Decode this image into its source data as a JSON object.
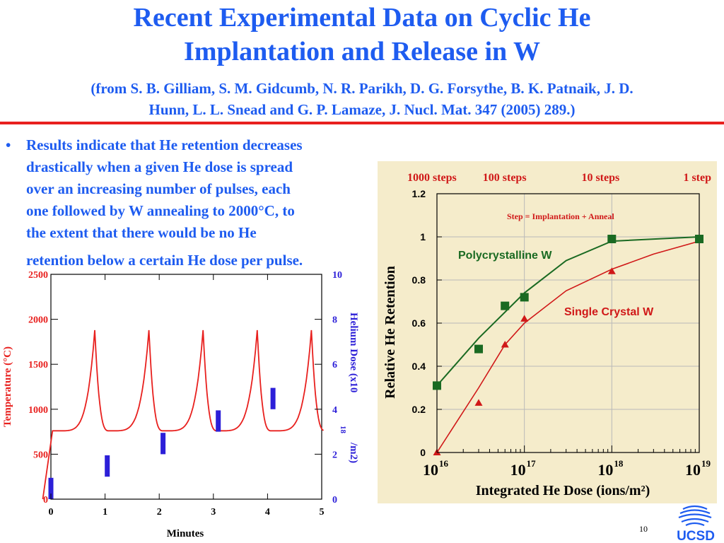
{
  "slide": {
    "title_line1": "Recent Experimental Data on Cyclic He",
    "title_line2": "Implantation and Release in W",
    "citation_line1": "(from S. B. Gilliam, S. M. Gidcumb, N. R. Parikh, D. G. Forsythe, B. K. Patnaik, J. D.",
    "citation_line2": "Hunn, L. L. Snead and G. P. Lamaze, J. Nucl. Mat. 347 (2005) 289.)",
    "bullet_char": "•",
    "bullet_lines": [
      "Results indicate that He retention decreases",
      "drastically when a given He dose is spread",
      "over an increasing number of pulses, each",
      "one followed by W annealing to 2000°C, to",
      "the extent that there would be no He",
      "retention below a certain He dose per pulse."
    ],
    "page_number": "10",
    "logo_text": "UCSD"
  },
  "colors": {
    "title_blue": "#1e5cf0",
    "rule_red": "#e8201e",
    "temp_red": "#e8201e",
    "dose_blue": "#2c1fd8",
    "chart2_bg": "#f5eccb",
    "poly_green": "#1a6a22",
    "single_red": "#d01818"
  },
  "chart_data": [
    {
      "type": "line",
      "title": "",
      "xlabel": "Minutes",
      "ylabel": "Temperature (°C)",
      "y2label_parts": [
        "Helium Dose (x10",
        "18",
        "/m2)"
      ],
      "xlim": [
        0,
        5
      ],
      "ylim": [
        0,
        2500
      ],
      "y2lim": [
        0,
        10
      ],
      "x_ticks": [
        "0",
        "1",
        "2",
        "3",
        "4",
        "5"
      ],
      "y_ticks": [
        "0",
        "500",
        "1000",
        "1500",
        "2000",
        "2500"
      ],
      "y2_ticks": [
        "0",
        "2",
        "4",
        "6",
        "8",
        "10"
      ],
      "temperature_peaks_min": [
        0.81,
        1.81,
        2.81,
        3.81,
        4.81
      ],
      "temperature_peak_c": 1880,
      "temperature_base_c": 760,
      "series": [
        {
          "name": "",
          "axis": "y2",
          "kind": "bar-segments",
          "segments": [
            {
              "x": 0.0,
              "y0": 0.0,
              "y1": 0.95
            },
            {
              "x": 1.04,
              "y0": 1.0,
              "y1": 1.95
            },
            {
              "x": 2.07,
              "y0": 2.0,
              "y1": 2.95
            },
            {
              "x": 3.09,
              "y0": 3.0,
              "y1": 3.95
            },
            {
              "x": 4.1,
              "y0": 4.0,
              "y1": 4.95
            }
          ]
        }
      ]
    },
    {
      "type": "scatter",
      "title": "",
      "xlabel": "Integrated He Dose (ions/m²)",
      "ylabel": "Relative He Retention",
      "xscale": "log",
      "xlim": [
        1e+16,
        1e+19
      ],
      "ylim": [
        0,
        1.2
      ],
      "x_ticks": [
        {
          "value": 1e+16,
          "base": "10",
          "exp": "16"
        },
        {
          "value": 1e+17,
          "base": "10",
          "exp": "17"
        },
        {
          "value": 1e+18,
          "base": "10",
          "exp": "18"
        },
        {
          "value": 1e+19,
          "base": "10",
          "exp": "19"
        }
      ],
      "y_ticks": [
        "0",
        "0.2",
        "0.4",
        "0.6",
        "0.8",
        "1",
        "1.2"
      ],
      "top_labels": [
        "1000 steps",
        "100 steps",
        "10 steps",
        "1 step"
      ],
      "annotation": "Step = Implantation + Anneal",
      "series": [
        {
          "name": "Polycrystalline W",
          "marker": "square",
          "x": [
            1e+16,
            3e+16,
            6e+16,
            1e+17,
            1e+18,
            1e+19
          ],
          "y": [
            0.31,
            0.48,
            0.68,
            0.72,
            0.99,
            0.99
          ],
          "line_x": [
            1e+16,
            3e+16,
            1e+17,
            3e+17,
            1e+18,
            1e+19
          ],
          "line_y": [
            0.31,
            0.53,
            0.74,
            0.89,
            0.98,
            1.0
          ]
        },
        {
          "name": "Single Crystal W",
          "marker": "triangle",
          "x": [
            1e+16,
            3e+16,
            6e+16,
            1e+17,
            1e+18
          ],
          "y": [
            0.0,
            0.23,
            0.5,
            0.62,
            0.84
          ],
          "line_x": [
            1e+16,
            3e+16,
            6e+16,
            1e+17,
            3e+17,
            1e+18,
            3e+18,
            1e+19
          ],
          "line_y": [
            0.0,
            0.3,
            0.5,
            0.6,
            0.75,
            0.85,
            0.92,
            0.98
          ]
        }
      ]
    }
  ]
}
